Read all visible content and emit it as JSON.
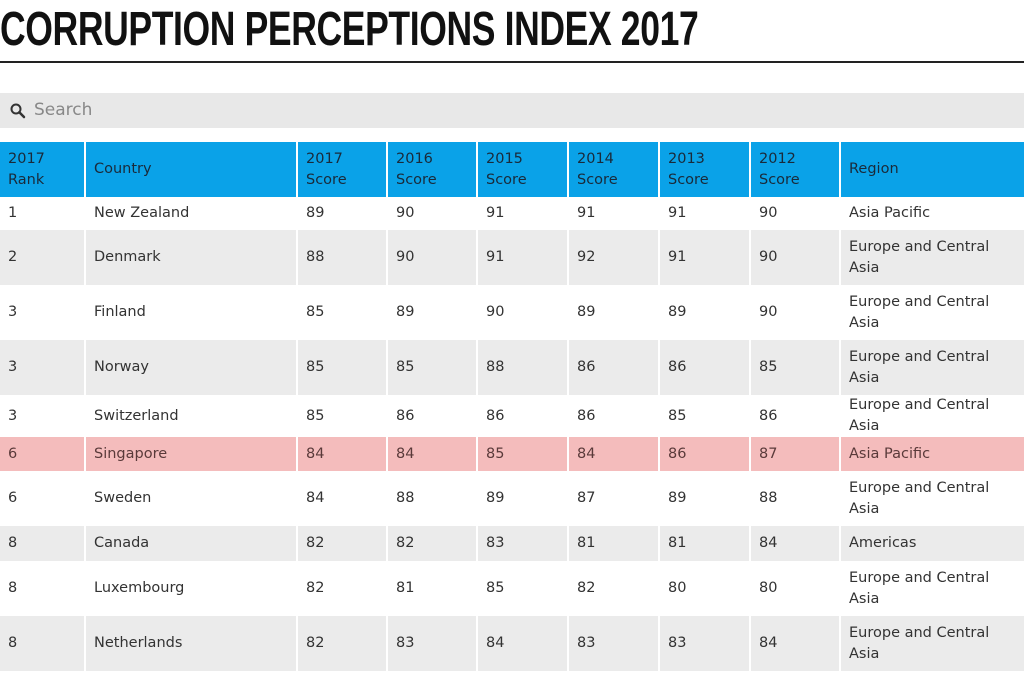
{
  "header": {
    "title": "CORRUPTION PERCEPTIONS INDEX 2017"
  },
  "search": {
    "placeholder": "Search"
  },
  "table": {
    "columns": [
      "2017 Rank",
      "Country",
      "2017 Score",
      "2016 Score",
      "2015 Score",
      "2014 Score",
      "2013 Score",
      "2012 Score",
      "Region"
    ],
    "rows": [
      [
        1,
        "New Zealand",
        89,
        90,
        91,
        91,
        91,
        90,
        "Asia Pacific"
      ],
      [
        2,
        "Denmark",
        88,
        90,
        91,
        92,
        91,
        90,
        "Europe and Central Asia"
      ],
      [
        3,
        "Finland",
        85,
        89,
        90,
        89,
        89,
        90,
        "Europe and Central Asia"
      ],
      [
        3,
        "Norway",
        85,
        85,
        88,
        86,
        86,
        85,
        "Europe and Central Asia"
      ],
      [
        3,
        "Switzerland",
        85,
        86,
        86,
        86,
        85,
        86,
        "Europe and Central Asia"
      ],
      [
        6,
        "Singapore",
        84,
        84,
        85,
        84,
        86,
        87,
        "Asia Pacific"
      ],
      [
        6,
        "Sweden",
        84,
        88,
        89,
        87,
        89,
        88,
        "Europe and Central Asia"
      ],
      [
        8,
        "Canada",
        82,
        82,
        83,
        81,
        81,
        84,
        "Americas"
      ],
      [
        8,
        "Luxembourg",
        82,
        81,
        85,
        82,
        80,
        80,
        "Europe and Central Asia"
      ],
      [
        8,
        "Netherlands",
        82,
        83,
        84,
        83,
        83,
        84,
        "Europe and Central Asia"
      ]
    ]
  }
}
